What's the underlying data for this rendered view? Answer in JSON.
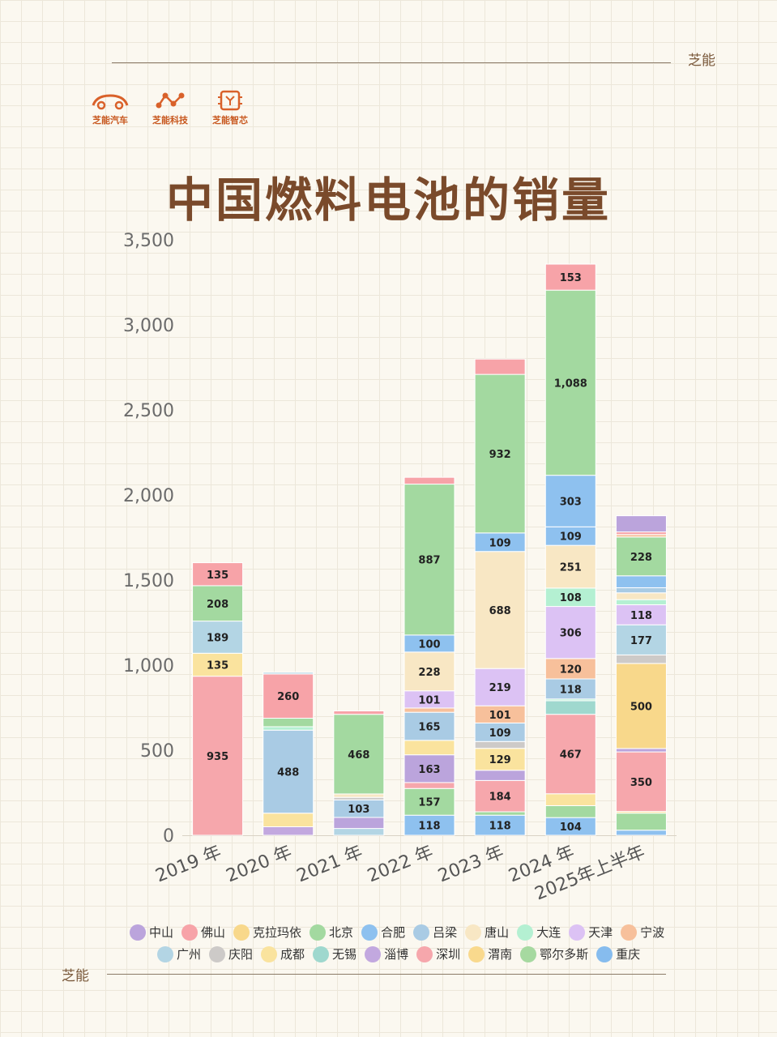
{
  "brand": {
    "top_label": "芝能",
    "bottom_label": "芝能"
  },
  "logos": [
    {
      "label": "芝能汽车",
      "icon": "car-icon"
    },
    {
      "label": "芝能科技",
      "icon": "network-icon"
    },
    {
      "label": "芝能智芯",
      "icon": "chip-icon"
    }
  ],
  "chart_data": {
    "type": "bar",
    "stacked": true,
    "title": "中国燃料电池的销量",
    "ylim": [
      0,
      3500
    ],
    "yticks": [
      "0",
      "500",
      "1,000",
      "1,500",
      "2,000",
      "2,500",
      "3,000",
      "3,500"
    ],
    "categories": [
      "2019 年",
      "2020 年",
      "2021 年",
      "2022 年",
      "2023 年",
      "2024 年",
      "2025年上半年"
    ],
    "legend": [
      {
        "name": "中山",
        "color": "#bba4dc"
      },
      {
        "name": "佛山",
        "color": "#f7a3a8"
      },
      {
        "name": "克拉玛依",
        "color": "#f8d88b"
      },
      {
        "name": "北京",
        "color": "#a3d9a0"
      },
      {
        "name": "合肥",
        "color": "#8ec1ef"
      },
      {
        "name": "吕梁",
        "color": "#a9cbe4"
      },
      {
        "name": "唐山",
        "color": "#f8e7c4"
      },
      {
        "name": "大连",
        "color": "#b4f0d2"
      },
      {
        "name": "天津",
        "color": "#dcc2f4"
      },
      {
        "name": "宁波",
        "color": "#f7c09b"
      },
      {
        "name": "广州",
        "color": "#b3d5e4"
      },
      {
        "name": "庆阳",
        "color": "#cdcac8"
      },
      {
        "name": "成都",
        "color": "#fae39e"
      },
      {
        "name": "无锡",
        "color": "#9fd8ce"
      },
      {
        "name": "淄博",
        "color": "#c2a8df"
      },
      {
        "name": "深圳",
        "color": "#f6a7ac"
      },
      {
        "name": "渭南",
        "color": "#f9d98d"
      },
      {
        "name": "鄂尔多斯",
        "color": "#a6d9a0"
      },
      {
        "name": "重庆",
        "color": "#86bcee"
      }
    ],
    "stacks": [
      [
        {
          "series": "深圳",
          "value": 935,
          "label": "935"
        },
        {
          "series": "成都",
          "value": 135,
          "label": "135"
        },
        {
          "series": "广州",
          "value": 189,
          "label": "189"
        },
        {
          "series": "北京",
          "value": 208,
          "label": "208"
        },
        {
          "series": "佛山",
          "value": 135,
          "label": "135"
        }
      ],
      [
        {
          "series": "淄博",
          "value": 50,
          "label": ""
        },
        {
          "series": "成都",
          "value": 80,
          "label": ""
        },
        {
          "series": "吕梁",
          "value": 488,
          "label": "488"
        },
        {
          "series": "大连",
          "value": 20,
          "label": ""
        },
        {
          "series": "北京",
          "value": 50,
          "label": ""
        },
        {
          "series": "佛山",
          "value": 260,
          "label": "260"
        },
        {
          "series": "广州",
          "value": 10,
          "label": ""
        }
      ],
      [
        {
          "series": "广州",
          "value": 40,
          "label": ""
        },
        {
          "series": "中山",
          "value": 65,
          "label": ""
        },
        {
          "series": "吕梁",
          "value": 103,
          "label": "103"
        },
        {
          "series": "庆阳",
          "value": 15,
          "label": ""
        },
        {
          "series": "唐山",
          "value": 20,
          "label": ""
        },
        {
          "series": "北京",
          "value": 468,
          "label": "468"
        },
        {
          "series": "佛山",
          "value": 20,
          "label": ""
        }
      ],
      [
        {
          "series": "合肥",
          "value": 118,
          "label": "118"
        },
        {
          "series": "北京",
          "value": 157,
          "label": "157"
        },
        {
          "series": "深圳",
          "value": 35,
          "label": ""
        },
        {
          "series": "中山",
          "value": 163,
          "label": "163"
        },
        {
          "series": "成都",
          "value": 85,
          "label": ""
        },
        {
          "series": "吕梁",
          "value": 165,
          "label": "165"
        },
        {
          "series": "宁波",
          "value": 25,
          "label": ""
        },
        {
          "series": "天津",
          "value": 101,
          "label": "101"
        },
        {
          "series": "唐山",
          "value": 228,
          "label": "228"
        },
        {
          "series": "合肥",
          "value": 100,
          "label": "100"
        },
        {
          "series": "北京",
          "value": 887,
          "label": "887"
        },
        {
          "series": "佛山",
          "value": 40,
          "label": ""
        }
      ],
      [
        {
          "series": "合肥",
          "value": 118,
          "label": "118"
        },
        {
          "series": "北京",
          "value": 20,
          "label": ""
        },
        {
          "series": "深圳",
          "value": 184,
          "label": "184"
        },
        {
          "series": "中山",
          "value": 60,
          "label": ""
        },
        {
          "series": "成都",
          "value": 129,
          "label": "129"
        },
        {
          "series": "庆阳",
          "value": 40,
          "label": ""
        },
        {
          "series": "吕梁",
          "value": 109,
          "label": "109"
        },
        {
          "series": "宁波",
          "value": 101,
          "label": "101"
        },
        {
          "series": "天津",
          "value": 219,
          "label": "219"
        },
        {
          "series": "唐山",
          "value": 688,
          "label": "688"
        },
        {
          "series": "合肥",
          "value": 109,
          "label": "109"
        },
        {
          "series": "北京",
          "value": 932,
          "label": "932"
        },
        {
          "series": "佛山",
          "value": 90,
          "label": ""
        }
      ],
      [
        {
          "series": "合肥",
          "value": 104,
          "label": "104"
        },
        {
          "series": "北京",
          "value": 70,
          "label": ""
        },
        {
          "series": "成都",
          "value": 70,
          "label": ""
        },
        {
          "series": "深圳",
          "value": 467,
          "label": "467"
        },
        {
          "series": "无锡",
          "value": 80,
          "label": ""
        },
        {
          "series": "大连",
          "value": 10,
          "label": ""
        },
        {
          "series": "吕梁",
          "value": 118,
          "label": "118"
        },
        {
          "series": "宁波",
          "value": 120,
          "label": "120"
        },
        {
          "series": "天津",
          "value": 306,
          "label": "306"
        },
        {
          "series": "大连",
          "value": 108,
          "label": "108"
        },
        {
          "series": "唐山",
          "value": 251,
          "label": "251"
        },
        {
          "series": "合肥",
          "value": 109,
          "label": "109"
        },
        {
          "series": "合肥",
          "value": 303,
          "label": "303"
        },
        {
          "series": "北京",
          "value": 1088,
          "label": "1,088"
        },
        {
          "series": "佛山",
          "value": 153,
          "label": "153"
        }
      ],
      [
        {
          "series": "合肥",
          "value": 30,
          "label": ""
        },
        {
          "series": "北京",
          "value": 100,
          "label": ""
        },
        {
          "series": "成都",
          "value": 10,
          "label": ""
        },
        {
          "series": "深圳",
          "value": 350,
          "label": "350"
        },
        {
          "series": "中山",
          "value": 20,
          "label": ""
        },
        {
          "series": "克拉玛依",
          "value": 500,
          "label": "500"
        },
        {
          "series": "庆阳",
          "value": 50,
          "label": ""
        },
        {
          "series": "广州",
          "value": 177,
          "label": "177"
        },
        {
          "series": "天津",
          "value": 118,
          "label": "118"
        },
        {
          "series": "大连",
          "value": 30,
          "label": ""
        },
        {
          "series": "唐山",
          "value": 40,
          "label": ""
        },
        {
          "series": "吕梁",
          "value": 30,
          "label": ""
        },
        {
          "series": "合肥",
          "value": 70,
          "label": ""
        },
        {
          "series": "北京",
          "value": 228,
          "label": "228"
        },
        {
          "series": "宁波",
          "value": 15,
          "label": ""
        },
        {
          "series": "佛山",
          "value": 15,
          "label": ""
        },
        {
          "series": "中山",
          "value": 95,
          "label": ""
        }
      ]
    ]
  }
}
